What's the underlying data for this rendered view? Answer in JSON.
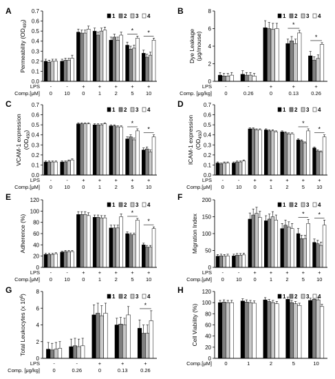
{
  "figure": {
    "background": "#ffffff"
  },
  "colors": {
    "1": "#000000",
    "2": "#808080",
    "3": "#c8c8c8",
    "4": "#ffffff"
  },
  "chart_data": [
    {
      "panel": "A",
      "type": "bar",
      "ylabel": [
        "Permeability (OD",
        "490",
        ")"
      ],
      "ylim": [
        0,
        0.7
      ],
      "yticks": [
        0,
        0.1,
        0.2,
        0.3,
        0.4,
        0.5,
        0.6,
        0.7
      ],
      "tick_decimals": 1,
      "legend": [
        "1",
        "2",
        "3",
        "4"
      ],
      "row_labels": [
        "LPS",
        "Comp.[μM]"
      ],
      "group_labels": [
        [
          "-",
          "0"
        ],
        [
          "-",
          "10"
        ],
        [
          "+",
          "0"
        ],
        [
          "+",
          "1"
        ],
        [
          "+",
          "2"
        ],
        [
          "+",
          "5"
        ],
        [
          "+",
          "10"
        ]
      ],
      "values": [
        [
          0.2,
          0.19,
          0.2,
          0.2
        ],
        [
          0.2,
          0.21,
          0.21,
          0.23
        ],
        [
          0.49,
          0.48,
          0.48,
          0.52
        ],
        [
          0.5,
          0.46,
          0.5,
          0.51
        ],
        [
          0.41,
          0.44,
          0.41,
          0.46
        ],
        [
          0.36,
          0.32,
          0.33,
          0.43
        ],
        [
          0.28,
          0.24,
          0.26,
          0.41
        ]
      ],
      "errors": [
        [
          0.02,
          0.02,
          0.02,
          0.02
        ],
        [
          0.02,
          0.02,
          0.02,
          0.03
        ],
        [
          0.03,
          0.03,
          0.03,
          0.03
        ],
        [
          0.03,
          0.03,
          0.03,
          0.03
        ],
        [
          0.03,
          0.03,
          0.03,
          0.03
        ],
        [
          0.03,
          0.03,
          0.03,
          0.02
        ],
        [
          0.03,
          0.03,
          0.03,
          0.02
        ]
      ],
      "annotations": [
        {
          "group": 5,
          "text": "*"
        },
        {
          "group": 6,
          "text": "*"
        }
      ]
    },
    {
      "panel": "B",
      "type": "bar",
      "ylabel": [
        "Dye Leakage",
        "(μg/mouse)"
      ],
      "ylim": [
        0,
        8
      ],
      "yticks": [
        0,
        2,
        4,
        6,
        8
      ],
      "tick_decimals": 0,
      "legend": [
        "1",
        "2",
        "3",
        "4"
      ],
      "row_labels": [
        "LPS",
        "Comp. [μg/kg]"
      ],
      "group_labels": [
        [
          "-",
          "0"
        ],
        [
          "-",
          "0.26"
        ],
        [
          "+",
          "0"
        ],
        [
          "+",
          "0.13"
        ],
        [
          "+",
          "0.26"
        ]
      ],
      "values": [
        [
          0.7,
          0.6,
          0.6,
          0.7
        ],
        [
          0.8,
          0.7,
          0.7,
          0.6
        ],
        [
          6.1,
          6.0,
          5.9,
          6.0
        ],
        [
          4.3,
          4.6,
          4.3,
          5.5
        ],
        [
          2.9,
          2.4,
          2.6,
          4.2
        ]
      ],
      "errors": [
        [
          0.3,
          0.3,
          0.3,
          0.3
        ],
        [
          0.4,
          0.3,
          0.3,
          0.3
        ],
        [
          0.8,
          0.7,
          0.7,
          0.6
        ],
        [
          0.5,
          0.5,
          0.5,
          0.3
        ],
        [
          0.5,
          0.4,
          0.4,
          0.2
        ]
      ],
      "annotations": [
        {
          "group": 3,
          "text": "*"
        },
        {
          "group": 4,
          "text": "*"
        }
      ]
    },
    {
      "panel": "C",
      "type": "bar",
      "ylabel": [
        "VCAM-1 expression",
        "(OD",
        "450",
        ")"
      ],
      "ylim": [
        0,
        0.7
      ],
      "yticks": [
        0,
        0.1,
        0.2,
        0.3,
        0.4,
        0.5,
        0.6,
        0.7
      ],
      "tick_decimals": 1,
      "legend": [
        "1",
        "2",
        "3",
        "4"
      ],
      "row_labels": [
        "LPS",
        "Comp.[μM]"
      ],
      "group_labels": [
        [
          "-",
          "0"
        ],
        [
          "-",
          "10"
        ],
        [
          "+",
          "0"
        ],
        [
          "+",
          "1"
        ],
        [
          "+",
          "2"
        ],
        [
          "+",
          "5"
        ],
        [
          "+",
          "10"
        ]
      ],
      "values": [
        [
          0.13,
          0.13,
          0.13,
          0.13
        ],
        [
          0.13,
          0.13,
          0.14,
          0.15
        ],
        [
          0.51,
          0.51,
          0.51,
          0.51
        ],
        [
          0.5,
          0.5,
          0.5,
          0.51
        ],
        [
          0.49,
          0.49,
          0.48,
          0.48
        ],
        [
          0.36,
          0.38,
          0.35,
          0.44
        ],
        [
          0.25,
          0.26,
          0.23,
          0.38
        ]
      ],
      "errors": [
        [
          0.01,
          0.01,
          0.01,
          0.01
        ],
        [
          0.01,
          0.01,
          0.01,
          0.01
        ],
        [
          0.01,
          0.01,
          0.01,
          0.01
        ],
        [
          0.01,
          0.01,
          0.01,
          0.01
        ],
        [
          0.01,
          0.01,
          0.01,
          0.01
        ],
        [
          0.02,
          0.02,
          0.02,
          0.02
        ],
        [
          0.02,
          0.02,
          0.02,
          0.02
        ]
      ],
      "annotations": [
        {
          "group": 5,
          "text": "*"
        },
        {
          "group": 6,
          "text": "*"
        }
      ]
    },
    {
      "panel": "D",
      "type": "bar",
      "ylabel": [
        "ICAM-1 expression",
        "(OD",
        "450",
        ")"
      ],
      "ylim": [
        0,
        0.7
      ],
      "yticks": [
        0,
        0.1,
        0.2,
        0.3,
        0.4,
        0.5,
        0.6,
        0.7
      ],
      "tick_decimals": 1,
      "legend": [
        "1",
        "2",
        "3",
        "4"
      ],
      "row_labels": [
        "LPS",
        "Comp.[μM]"
      ],
      "group_labels": [
        [
          "-",
          "0"
        ],
        [
          "-",
          "10"
        ],
        [
          "+",
          "0"
        ],
        [
          "+",
          "1"
        ],
        [
          "+",
          "2"
        ],
        [
          "+",
          "5"
        ],
        [
          "+",
          "10"
        ]
      ],
      "values": [
        [
          0.12,
          0.11,
          0.12,
          0.12
        ],
        [
          0.12,
          0.13,
          0.13,
          0.14
        ],
        [
          0.46,
          0.46,
          0.45,
          0.45
        ],
        [
          0.45,
          0.44,
          0.44,
          0.43
        ],
        [
          0.43,
          0.42,
          0.41,
          0.41
        ],
        [
          0.35,
          0.34,
          0.32,
          0.44
        ],
        [
          0.27,
          0.24,
          0.23,
          0.38
        ]
      ],
      "errors": [
        [
          0.01,
          0.01,
          0.01,
          0.01
        ],
        [
          0.01,
          0.01,
          0.01,
          0.01
        ],
        [
          0.01,
          0.01,
          0.01,
          0.01
        ],
        [
          0.01,
          0.01,
          0.01,
          0.01
        ],
        [
          0.01,
          0.01,
          0.01,
          0.01
        ],
        [
          0.01,
          0.01,
          0.01,
          0.02
        ],
        [
          0.01,
          0.01,
          0.01,
          0.02
        ]
      ],
      "annotations": [
        {
          "group": 5,
          "text": "*"
        },
        {
          "group": 6,
          "text": "*"
        }
      ]
    },
    {
      "panel": "E",
      "type": "bar",
      "ylabel": [
        "Adherence (%)"
      ],
      "ylim": [
        0,
        120
      ],
      "yticks": [
        0,
        20,
        40,
        60,
        80,
        100,
        120
      ],
      "tick_decimals": 0,
      "legend": [
        "1",
        "2",
        "3",
        "4"
      ],
      "row_labels": [
        "LPS",
        "Comp.[μM]"
      ],
      "group_labels": [
        [
          "-",
          "0"
        ],
        [
          "-",
          "10"
        ],
        [
          "+",
          "0"
        ],
        [
          "+",
          "1"
        ],
        [
          "+",
          "2"
        ],
        [
          "+",
          "5"
        ],
        [
          "+",
          "10"
        ]
      ],
      "values": [
        [
          23,
          23,
          23,
          24
        ],
        [
          27,
          28,
          28,
          28
        ],
        [
          94,
          94,
          94,
          92
        ],
        [
          89,
          89,
          88,
          88
        ],
        [
          70,
          70,
          70,
          90
        ],
        [
          60,
          58,
          58,
          84
        ],
        [
          40,
          36,
          36,
          69
        ]
      ],
      "errors": [
        [
          2,
          2,
          2,
          2
        ],
        [
          2,
          2,
          2,
          2
        ],
        [
          5,
          5,
          5,
          5
        ],
        [
          4,
          4,
          4,
          4
        ],
        [
          5,
          5,
          5,
          5
        ],
        [
          3,
          3,
          3,
          3
        ],
        [
          3,
          3,
          3,
          3
        ]
      ],
      "annotations": [
        {
          "group": 5,
          "text": "*"
        },
        {
          "group": 6,
          "text": "*"
        }
      ]
    },
    {
      "panel": "F",
      "type": "bar",
      "ylabel": [
        "Migration Index"
      ],
      "ylim": [
        0,
        200
      ],
      "yticks": [
        0,
        50,
        100,
        150,
        200
      ],
      "tick_decimals": 0,
      "legend": [
        "1",
        "2",
        "3",
        "4"
      ],
      "row_labels": [
        "LPS",
        "Comp.[μM]"
      ],
      "group_labels": [
        [
          "-",
          "0"
        ],
        [
          "-",
          "10"
        ],
        [
          "+",
          "0"
        ],
        [
          "+",
          "1"
        ],
        [
          "+",
          "2"
        ],
        [
          "+",
          "5"
        ],
        [
          "+",
          "10"
        ]
      ],
      "values": [
        [
          33,
          34,
          33,
          34
        ],
        [
          34,
          36,
          36,
          37
        ],
        [
          143,
          155,
          160,
          148
        ],
        [
          138,
          143,
          150,
          140
        ],
        [
          115,
          125,
          120,
          115
        ],
        [
          100,
          85,
          85,
          130
        ],
        [
          74,
          70,
          65,
          125
        ]
      ],
      "errors": [
        [
          5,
          5,
          5,
          5
        ],
        [
          5,
          5,
          5,
          5
        ],
        [
          18,
          18,
          18,
          18
        ],
        [
          15,
          15,
          15,
          15
        ],
        [
          15,
          15,
          15,
          15
        ],
        [
          15,
          10,
          10,
          12
        ],
        [
          10,
          10,
          10,
          15
        ]
      ],
      "annotations": [
        {
          "group": 5,
          "text": "*"
        },
        {
          "group": 6,
          "text": "*"
        }
      ]
    },
    {
      "panel": "G",
      "type": "bar",
      "ylabel": [
        "Total Leukocytes (x 10",
        "6",
        ")"
      ],
      "ylim": [
        0,
        8
      ],
      "yticks": [
        0,
        2,
        4,
        6,
        8
      ],
      "tick_decimals": 0,
      "legend": [
        "1",
        "2",
        "3",
        "4"
      ],
      "row_labels": [
        "LPS",
        "Comp. [μg/kg]"
      ],
      "group_labels": [
        [
          "-",
          "0"
        ],
        [
          "-",
          "0.26"
        ],
        [
          "+",
          "0"
        ],
        [
          "+",
          "0.13"
        ],
        [
          "+",
          "0.26"
        ]
      ],
      "values": [
        [
          1.1,
          1.0,
          1.1,
          1.2
        ],
        [
          1.4,
          1.5,
          1.4,
          1.5
        ],
        [
          5.2,
          5.4,
          5.1,
          5.4
        ],
        [
          4.0,
          4.1,
          4.0,
          5.2
        ],
        [
          3.6,
          3.0,
          3.0,
          4.5
        ]
      ],
      "errors": [
        [
          0.8,
          0.8,
          0.8,
          0.8
        ],
        [
          0.9,
          0.9,
          0.9,
          0.9
        ],
        [
          1.2,
          1.2,
          1.2,
          1.2
        ],
        [
          0.8,
          0.8,
          0.8,
          1.0
        ],
        [
          1.0,
          1.0,
          1.0,
          1.2
        ]
      ],
      "annotations": [
        {
          "group": 4,
          "text": "*"
        }
      ]
    },
    {
      "panel": "H",
      "type": "bar",
      "ylabel": [
        "Cell Viability (%)"
      ],
      "ylim": [
        0,
        120
      ],
      "yticks": [
        0,
        20,
        40,
        60,
        80,
        100,
        120
      ],
      "tick_decimals": 0,
      "legend": [
        "1",
        "2",
        "3",
        "4"
      ],
      "row_labels": [
        "Comp.[μM]"
      ],
      "group_labels": [
        [
          "0"
        ],
        [
          "1"
        ],
        [
          "2"
        ],
        [
          "5"
        ],
        [
          "10"
        ]
      ],
      "values": [
        [
          100,
          101,
          100,
          100
        ],
        [
          103,
          101,
          100,
          99
        ],
        [
          105,
          102,
          100,
          98
        ],
        [
          106,
          100,
          98,
          95
        ],
        [
          104,
          106,
          105,
          93
        ]
      ],
      "errors": [
        [
          4,
          4,
          4,
          4
        ],
        [
          4,
          4,
          4,
          4
        ],
        [
          4,
          4,
          4,
          4
        ],
        [
          4,
          4,
          4,
          4
        ],
        [
          4,
          4,
          4,
          4
        ]
      ],
      "annotations": []
    }
  ]
}
